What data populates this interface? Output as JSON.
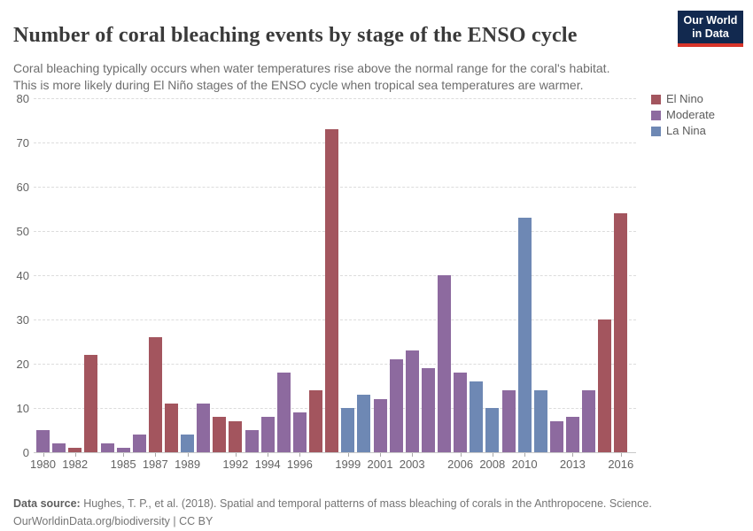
{
  "header": {
    "title": "Number of coral bleaching events by stage of the ENSO cycle",
    "subtitle_line1": "Coral bleaching typically occurs when water temperatures rise above the normal range for the coral's habitat.",
    "subtitle_line2": "This is more likely during El Niño stages of the ENSO cycle when tropical sea temperatures are warmer.",
    "logo": {
      "line1": "Our World",
      "line2": "in Data",
      "bg_color": "#12294f",
      "accent_color": "#d8352a"
    }
  },
  "chart_data": {
    "type": "bar",
    "title": "Number of coral bleaching events by stage of the ENSO cycle",
    "xlabel": "",
    "ylabel": "",
    "ylim": [
      0,
      80
    ],
    "y_ticks": [
      0,
      10,
      20,
      30,
      40,
      50,
      60,
      70,
      80
    ],
    "grid": "horizontal-dashed",
    "legend_position": "right",
    "legend": [
      {
        "label": "El Nino",
        "color": "#a3555e"
      },
      {
        "label": "Moderate",
        "color": "#8d6a9f"
      },
      {
        "label": "La Nina",
        "color": "#6e88b4"
      }
    ],
    "x_tick_labels": [
      "1980",
      "1982",
      "1985",
      "1987",
      "1989",
      "1992",
      "1994",
      "1996",
      "1999",
      "2001",
      "2003",
      "2006",
      "2008",
      "2010",
      "2013",
      "2016"
    ],
    "bars": [
      {
        "year": 1980,
        "value": 5,
        "group": "Moderate"
      },
      {
        "year": 1981,
        "value": 2,
        "group": "Moderate"
      },
      {
        "year": 1982,
        "value": 1,
        "group": "El Nino"
      },
      {
        "year": 1983,
        "value": 22,
        "group": "El Nino"
      },
      {
        "year": 1984,
        "value": 2,
        "group": "Moderate"
      },
      {
        "year": 1985,
        "value": 1,
        "group": "Moderate"
      },
      {
        "year": 1986,
        "value": 4,
        "group": "Moderate"
      },
      {
        "year": 1987,
        "value": 26,
        "group": "El Nino"
      },
      {
        "year": 1988,
        "value": 11,
        "group": "El Nino"
      },
      {
        "year": 1989,
        "value": 4,
        "group": "La Nina"
      },
      {
        "year": 1990,
        "value": 11,
        "group": "Moderate"
      },
      {
        "year": 1991,
        "value": 8,
        "group": "El Nino"
      },
      {
        "year": 1992,
        "value": 7,
        "group": "El Nino"
      },
      {
        "year": 1993,
        "value": 5,
        "group": "Moderate"
      },
      {
        "year": 1994,
        "value": 8,
        "group": "Moderate"
      },
      {
        "year": 1995,
        "value": 18,
        "group": "Moderate"
      },
      {
        "year": 1996,
        "value": 9,
        "group": "Moderate"
      },
      {
        "year": 1997,
        "value": 14,
        "group": "El Nino"
      },
      {
        "year": 1998,
        "value": 73,
        "group": "El Nino"
      },
      {
        "year": 1999,
        "value": 10,
        "group": "La Nina"
      },
      {
        "year": 2000,
        "value": 13,
        "group": "La Nina"
      },
      {
        "year": 2001,
        "value": 12,
        "group": "Moderate"
      },
      {
        "year": 2002,
        "value": 21,
        "group": "Moderate"
      },
      {
        "year": 2003,
        "value": 23,
        "group": "Moderate"
      },
      {
        "year": 2004,
        "value": 19,
        "group": "Moderate"
      },
      {
        "year": 2005,
        "value": 40,
        "group": "Moderate"
      },
      {
        "year": 2006,
        "value": 18,
        "group": "Moderate"
      },
      {
        "year": 2007,
        "value": 16,
        "group": "La Nina"
      },
      {
        "year": 2008,
        "value": 10,
        "group": "La Nina"
      },
      {
        "year": 2009,
        "value": 14,
        "group": "Moderate"
      },
      {
        "year": 2010,
        "value": 53,
        "group": "La Nina"
      },
      {
        "year": 2011,
        "value": 14,
        "group": "La Nina"
      },
      {
        "year": 2012,
        "value": 7,
        "group": "Moderate"
      },
      {
        "year": 2013,
        "value": 8,
        "group": "Moderate"
      },
      {
        "year": 2014,
        "value": 14,
        "group": "Moderate"
      },
      {
        "year": 2015,
        "value": 30,
        "group": "El Nino"
      },
      {
        "year": 2016,
        "value": 54,
        "group": "El Nino"
      }
    ]
  },
  "footer": {
    "source_label": "Data source:",
    "source_text": " Hughes, T. P., et al. (2018). Spatial and temporal patterns of mass bleaching of corals in the Anthropocene. Science.",
    "url": "OurWorldinData.org/biodiversity",
    "license": " | CC BY"
  }
}
